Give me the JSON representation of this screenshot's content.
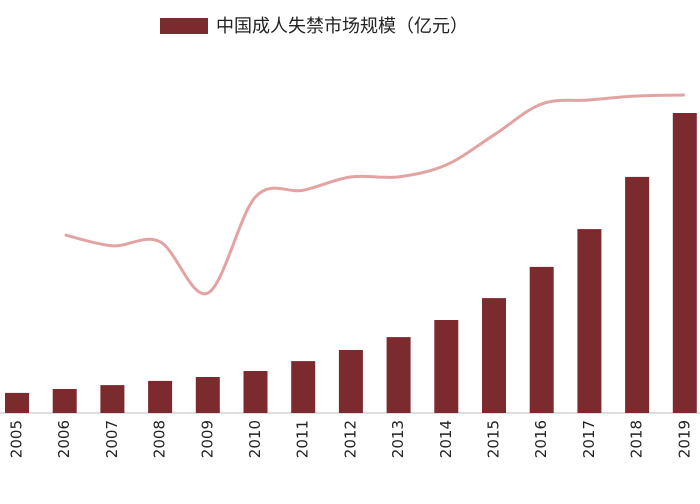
{
  "chart_data": {
    "type": "bar",
    "legend_label": "中国成人失禁市场规模（亿元）",
    "categories": [
      "2005",
      "2006",
      "2007",
      "2008",
      "2009",
      "2010",
      "2011",
      "2012",
      "2013",
      "2014",
      "2015",
      "2016",
      "2017",
      "2018",
      "2019"
    ],
    "values": [
      6.7,
      8,
      9.3,
      10.7,
      12,
      14,
      17.3,
      21,
      25.3,
      31,
      38.3,
      48.7,
      61.3,
      78.7,
      100
    ],
    "color": "#7b2a2e",
    "ylim": [
      0,
      111
    ],
    "line": {
      "color": "#e3a3a3",
      "axis": "y2",
      "values": [
        null,
        53.5,
        50.2,
        51.4,
        36.0,
        64.9,
        66.9,
        70.9,
        70.9,
        74.5,
        83.5,
        92.8,
        94.0,
        95.2,
        95.5
      ]
    },
    "y2lim": [
      0,
      100
    ]
  }
}
